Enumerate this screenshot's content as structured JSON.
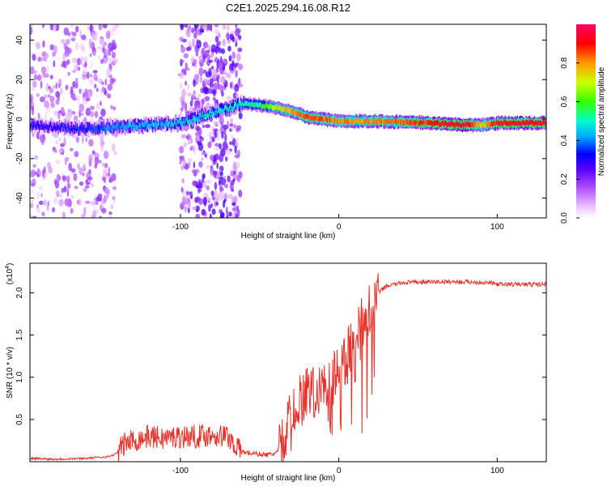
{
  "chart_data": [
    {
      "type": "heatmap",
      "title": "C2E1.2025.294.16.08.R12",
      "xlabel": "Height of straight line (km)",
      "ylabel": "Frequency (Hz)",
      "xlim": [
        -195,
        131
      ],
      "ylim": [
        -50,
        48
      ],
      "xticks": [
        -100,
        0,
        100
      ],
      "xtick_labels": [
        "-100",
        "0",
        "100"
      ],
      "yticks": [
        -40,
        -20,
        0,
        20,
        40
      ],
      "ytick_labels": [
        "-40",
        "-20",
        "0",
        "20",
        "40"
      ],
      "colorbar": {
        "label": "Normalized spectral amplitude",
        "range": [
          0,
          1
        ],
        "ticks": [
          0.0,
          0.2,
          0.4,
          0.6,
          0.8
        ],
        "tick_labels": [
          "0.0",
          "0.2",
          "0.4",
          "0.6",
          "0.8"
        ],
        "colors": [
          "#ffffff",
          "#cc66ff",
          "#6600ff",
          "#0000ff",
          "#00ccff",
          "#00ff66",
          "#ccff00",
          "#ff9900",
          "#ff0000",
          "#ff0066"
        ]
      },
      "ridge": {
        "x": [
          -195,
          -180,
          -160,
          -140,
          -120,
          -100,
          -60,
          -50,
          -40,
          -30,
          -20,
          -10,
          0,
          20,
          40,
          60,
          80,
          90,
          100,
          131
        ],
        "freq_hz": [
          -3,
          -4,
          -5,
          -4,
          -3,
          -2,
          8,
          7,
          6,
          4,
          1,
          0,
          -1,
          -1,
          -1.5,
          -2,
          -3,
          -3,
          -2,
          -2
        ],
        "amplitude": [
          0.3,
          0.3,
          0.35,
          0.4,
          0.45,
          0.45,
          0.5,
          0.55,
          0.7,
          0.8,
          0.85,
          0.85,
          0.8,
          0.8,
          0.85,
          0.9,
          0.95,
          0.75,
          0.9,
          0.95
        ]
      },
      "noise_regions": [
        {
          "x_range": [
            -195,
            -140
          ],
          "amplitude": 0.15
        },
        {
          "x_range": [
            -100,
            -62
          ],
          "amplitude": 0.2
        }
      ]
    },
    {
      "type": "line",
      "title": "",
      "xlabel": "Height of straight line (km)",
      "ylabel": "SNR (10 * v/v)",
      "y_scale_label": "(x10",
      "y_scale_exponent": "4",
      "xlim": [
        -195,
        131
      ],
      "ylim": [
        0,
        2.35
      ],
      "xticks": [
        -100,
        0,
        100
      ],
      "xtick_labels": [
        "-100",
        "0",
        "100"
      ],
      "yticks": [
        0.5,
        1.0,
        1.5,
        2.0
      ],
      "ytick_labels": [
        "0.5",
        "1.0",
        "1.5",
        "2.0"
      ],
      "color": "#e8302a",
      "series": [
        {
          "name": "SNR",
          "x": [
            -195,
            -180,
            -160,
            -145,
            -140,
            -135,
            -130,
            -120,
            -110,
            -100,
            -90,
            -80,
            -70,
            -62,
            -55,
            -45,
            -40,
            -35,
            -32,
            -30,
            -25,
            -20,
            -15,
            -10,
            -5,
            0,
            5,
            10,
            15,
            20,
            25,
            30,
            40,
            60,
            80,
            95,
            100,
            105,
            115,
            131
          ],
          "y": [
            0.04,
            0.03,
            0.04,
            0.06,
            0.1,
            0.22,
            0.25,
            0.3,
            0.28,
            0.3,
            0.3,
            0.32,
            0.3,
            0.12,
            0.1,
            0.08,
            0.1,
            0.2,
            0.45,
            0.6,
            0.7,
            0.8,
            0.8,
            0.9,
            0.95,
            1.1,
            1.25,
            1.45,
            1.65,
            1.85,
            2.0,
            2.08,
            2.12,
            2.13,
            2.13,
            2.12,
            2.1,
            2.1,
            2.1,
            2.1
          ]
        }
      ]
    }
  ]
}
